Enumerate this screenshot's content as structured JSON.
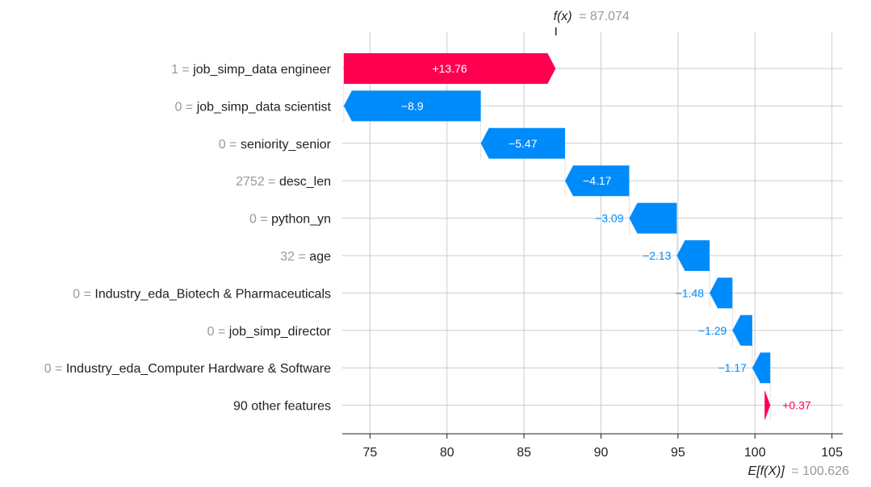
{
  "chart_data": {
    "type": "waterfall",
    "fx": {
      "label": "f(x)",
      "value_text": "= 87.074",
      "value": 87.074
    },
    "expected": {
      "label": "E[f(X)]",
      "value_text": "= 100.626",
      "value": 100.626
    },
    "xlim": [
      73.2,
      105.7
    ],
    "xticks": [
      75,
      80,
      85,
      90,
      95,
      100,
      105
    ],
    "colors": {
      "positive": "#ff0051",
      "negative": "#008bfb",
      "grid": "#cccccc"
    },
    "rows": [
      {
        "value": "1 =",
        "feature": "job_simp_data engineer",
        "contribution": 13.76,
        "label": "+13.76"
      },
      {
        "value": "0 =",
        "feature": "job_simp_data scientist",
        "contribution": -8.9,
        "label": "−8.9"
      },
      {
        "value": "0 =",
        "feature": "seniority_senior",
        "contribution": -5.47,
        "label": "−5.47"
      },
      {
        "value": "2752 =",
        "feature": "desc_len",
        "contribution": -4.17,
        "label": "−4.17"
      },
      {
        "value": "0 =",
        "feature": "python_yn",
        "contribution": -3.09,
        "label": "−3.09"
      },
      {
        "value": "32 =",
        "feature": "age",
        "contribution": -2.13,
        "label": "−2.13"
      },
      {
        "value": "0 =",
        "feature": "Industry_eda_Biotech & Pharmaceuticals",
        "contribution": -1.48,
        "label": "−1.48"
      },
      {
        "value": "0 =",
        "feature": "job_simp_director",
        "contribution": -1.29,
        "label": "−1.29"
      },
      {
        "value": "0 =",
        "feature": "Industry_eda_Computer Hardware & Software",
        "contribution": -1.17,
        "label": "−1.17"
      },
      {
        "value": "",
        "feature": "90 other features",
        "contribution": 0.37,
        "label": "+0.37"
      }
    ]
  }
}
